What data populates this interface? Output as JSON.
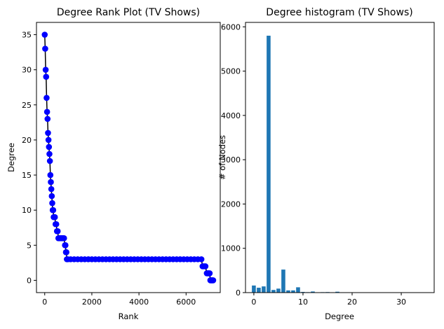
{
  "chart_data": [
    {
      "type": "line",
      "title": "Degree Rank Plot (TV Shows)",
      "xlabel": "Rank",
      "ylabel": "Degree",
      "xlim": [
        -350,
        7450
      ],
      "ylim": [
        -1.75,
        36.75
      ],
      "xticks": [
        0,
        2000,
        4000,
        6000
      ],
      "yticks": [
        0,
        5,
        10,
        15,
        20,
        25,
        30,
        35
      ],
      "line_color": "#000000",
      "marker_color": "#0000ff",
      "points": [
        [
          0,
          35
        ],
        [
          20,
          33
        ],
        [
          40,
          30
        ],
        [
          60,
          29
        ],
        [
          80,
          26
        ],
        [
          100,
          24
        ],
        [
          120,
          23
        ],
        [
          140,
          21
        ],
        [
          160,
          20
        ],
        [
          180,
          19
        ],
        [
          200,
          18
        ],
        [
          220,
          17
        ],
        [
          240,
          15
        ],
        [
          260,
          14
        ],
        [
          280,
          13
        ],
        [
          300,
          12
        ],
        [
          320,
          11
        ],
        [
          340,
          10
        ],
        [
          360,
          10
        ],
        [
          380,
          9
        ],
        [
          400,
          9
        ],
        [
          430,
          9
        ],
        [
          460,
          8
        ],
        [
          490,
          8
        ],
        [
          520,
          7
        ],
        [
          550,
          7
        ],
        [
          580,
          6
        ],
        [
          620,
          6
        ],
        [
          660,
          6
        ],
        [
          700,
          6
        ],
        [
          740,
          6
        ],
        [
          780,
          6
        ],
        [
          820,
          6
        ],
        [
          860,
          5
        ],
        [
          880,
          5
        ],
        [
          900,
          4
        ],
        [
          920,
          4
        ],
        [
          940,
          3
        ],
        [
          980,
          3
        ],
        [
          1100,
          3
        ],
        [
          1250,
          3
        ],
        [
          1400,
          3
        ],
        [
          1550,
          3
        ],
        [
          1700,
          3
        ],
        [
          1850,
          3
        ],
        [
          2000,
          3
        ],
        [
          2150,
          3
        ],
        [
          2300,
          3
        ],
        [
          2450,
          3
        ],
        [
          2600,
          3
        ],
        [
          2750,
          3
        ],
        [
          2900,
          3
        ],
        [
          3050,
          3
        ],
        [
          3200,
          3
        ],
        [
          3350,
          3
        ],
        [
          3500,
          3
        ],
        [
          3650,
          3
        ],
        [
          3800,
          3
        ],
        [
          3950,
          3
        ],
        [
          4100,
          3
        ],
        [
          4250,
          3
        ],
        [
          4400,
          3
        ],
        [
          4550,
          3
        ],
        [
          4700,
          3
        ],
        [
          4850,
          3
        ],
        [
          5000,
          3
        ],
        [
          5150,
          3
        ],
        [
          5300,
          3
        ],
        [
          5450,
          3
        ],
        [
          5600,
          3
        ],
        [
          5750,
          3
        ],
        [
          5900,
          3
        ],
        [
          6050,
          3
        ],
        [
          6200,
          3
        ],
        [
          6350,
          3
        ],
        [
          6500,
          3
        ],
        [
          6650,
          3
        ],
        [
          6700,
          2
        ],
        [
          6760,
          2
        ],
        [
          6820,
          2
        ],
        [
          6880,
          1
        ],
        [
          6920,
          1
        ],
        [
          6960,
          1
        ],
        [
          7000,
          1
        ],
        [
          7030,
          0
        ],
        [
          7060,
          0
        ],
        [
          7090,
          0
        ],
        [
          7120,
          0
        ],
        [
          7150,
          0
        ]
      ]
    },
    {
      "type": "bar",
      "title": "Degree histogram (TV Shows)",
      "xlabel": "Degree",
      "ylabel": "# of Nodes",
      "xlim": [
        -1.7,
        36.7
      ],
      "ylim": [
        0,
        6100
      ],
      "xticks": [
        0,
        10,
        20,
        30
      ],
      "yticks": [
        0,
        1000,
        2000,
        3000,
        4000,
        5000,
        6000
      ],
      "bar_color": "#1f77b4",
      "categories": [
        0,
        1,
        2,
        3,
        4,
        5,
        6,
        7,
        8,
        9,
        10,
        11,
        12,
        13,
        14,
        15,
        16,
        17,
        18,
        19,
        20,
        21,
        22,
        23,
        24,
        25,
        26,
        27,
        28,
        29,
        30,
        31,
        32,
        33,
        34,
        35
      ],
      "values": [
        160,
        110,
        140,
        5800,
        60,
        90,
        520,
        50,
        50,
        120,
        15,
        10,
        25,
        5,
        10,
        12,
        3,
        20,
        5,
        8,
        3,
        3,
        2,
        2,
        2,
        1,
        1,
        1,
        1,
        1,
        1,
        1,
        1,
        1,
        1,
        1
      ]
    }
  ]
}
